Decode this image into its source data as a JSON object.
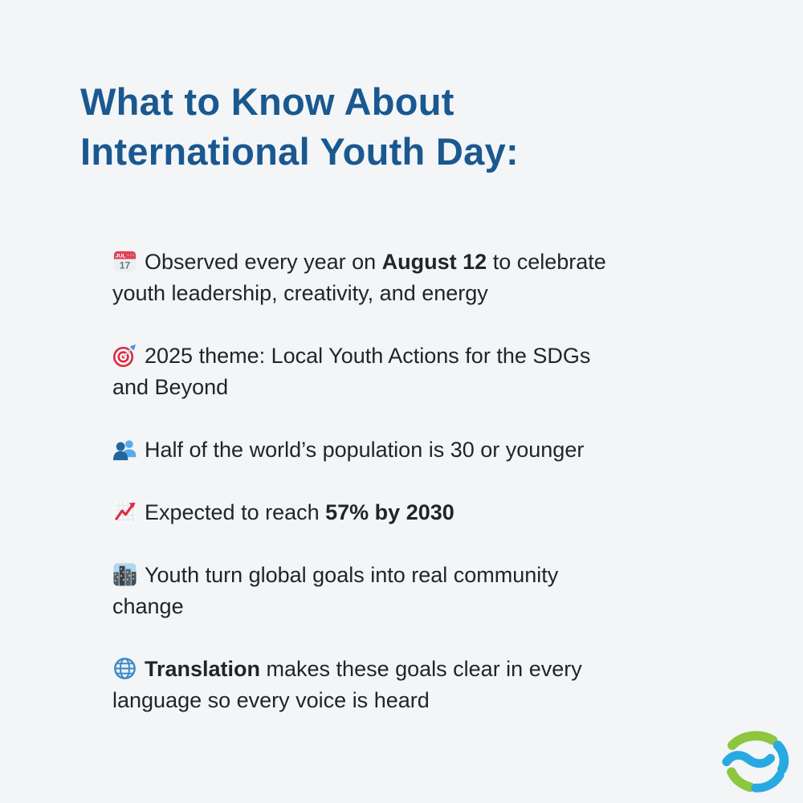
{
  "page": {
    "background_color": "#f3f5f7",
    "title_color": "#1a5890",
    "body_text_color": "#212529"
  },
  "header": {
    "title_lines": [
      "What to Know About",
      "International Youth Day:"
    ]
  },
  "facts": [
    {
      "icon": "calendar-icon",
      "segments": [
        {
          "t": "Observed every year on ",
          "b": false
        },
        {
          "t": "August 12",
          "b": true
        },
        {
          "t": " to celebrate\nyouth leadership, creativity, and energy",
          "b": false
        }
      ]
    },
    {
      "icon": "target-icon",
      "segments": [
        {
          "t": "2025 theme: Local Youth Actions for the SDGs\nand Beyond",
          "b": false
        }
      ]
    },
    {
      "icon": "people-icon",
      "segments": [
        {
          "t": "Half of the world’s population is 30 or younger",
          "b": false
        }
      ]
    },
    {
      "icon": "chart-up-icon",
      "segments": [
        {
          "t": "Expected to reach ",
          "b": false
        },
        {
          "t": "57% by 2030",
          "b": true
        }
      ]
    },
    {
      "icon": "cityscape-icon",
      "segments": [
        {
          "t": "Youth turn global goals into real community\nchange",
          "b": false
        }
      ]
    },
    {
      "icon": "globe-icon",
      "segments": [
        {
          "t": "Translation",
          "b": true
        },
        {
          "t": " makes these goals clear in every\nlanguage so every voice is heard",
          "b": false
        }
      ]
    }
  ],
  "calendar_icon_text": {
    "month": "JUL",
    "day": "17"
  },
  "logo": {
    "name": "swirl-logo",
    "green": "#8dc63f",
    "blue": "#29a9e1"
  }
}
